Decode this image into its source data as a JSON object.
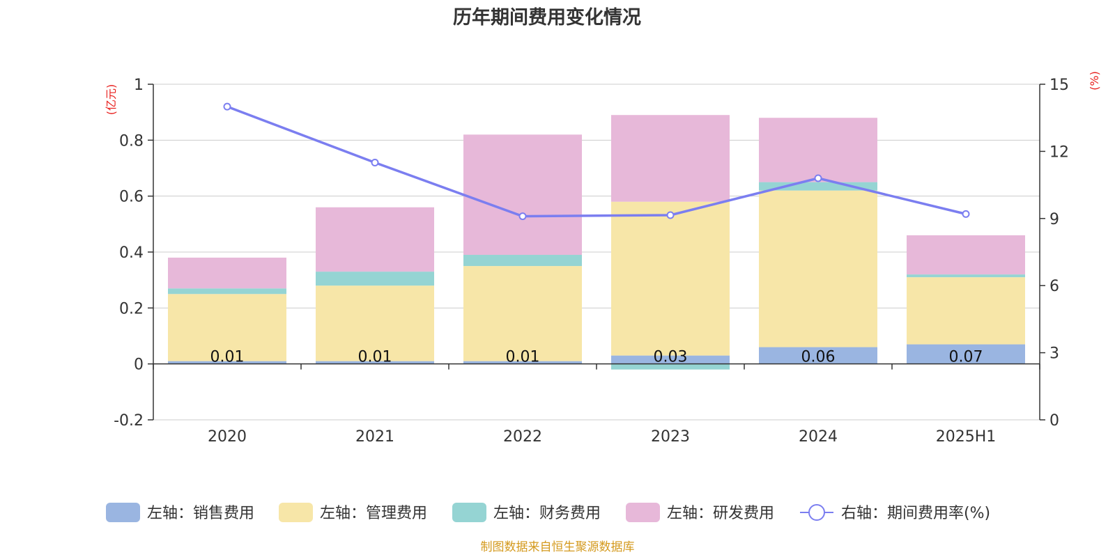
{
  "chart_data": {
    "type": "bar",
    "title": "历年期间费用变化情况",
    "categories": [
      "2020",
      "2021",
      "2022",
      "2023",
      "2024",
      "2025H1"
    ],
    "left_axis": {
      "unit": "(亿元)",
      "ylim": [
        -0.2,
        1
      ],
      "ticks": [
        "-0.2",
        "0",
        "0.2",
        "0.4",
        "0.6",
        "0.8",
        "1"
      ]
    },
    "right_axis": {
      "unit": "(%)",
      "ylim": [
        0,
        15
      ],
      "ticks": [
        "0",
        "3",
        "6",
        "9",
        "12",
        "15"
      ]
    },
    "series": [
      {
        "name": "左轴：销售费用",
        "type": "bar",
        "color": "#9ab5e1",
        "values": [
          0.01,
          0.01,
          0.01,
          0.03,
          0.06,
          0.07
        ],
        "labels": [
          "0.01",
          "0.01",
          "0.01",
          "0.03",
          "0.06",
          "0.07"
        ]
      },
      {
        "name": "左轴：管理费用",
        "type": "bar",
        "color": "#f7e6a8",
        "values": [
          0.24,
          0.27,
          0.34,
          0.55,
          0.56,
          0.24
        ]
      },
      {
        "name": "左轴：财务费用",
        "type": "bar",
        "color": "#95d4d3",
        "values": [
          0.02,
          0.05,
          0.04,
          -0.02,
          0.03,
          0.01
        ]
      },
      {
        "name": "左轴：研发费用",
        "type": "bar",
        "color": "#e7b8d9",
        "values": [
          0.11,
          0.23,
          0.43,
          0.31,
          0.23,
          0.14
        ]
      },
      {
        "name": "右轴：期间费用率(%)",
        "type": "line",
        "color": "#7b7ef0",
        "values": [
          14.0,
          11.5,
          9.1,
          9.15,
          10.8,
          9.2
        ]
      }
    ],
    "grid": true,
    "legend_position": "bottom"
  },
  "source": "制图数据来自恒生聚源数据库"
}
